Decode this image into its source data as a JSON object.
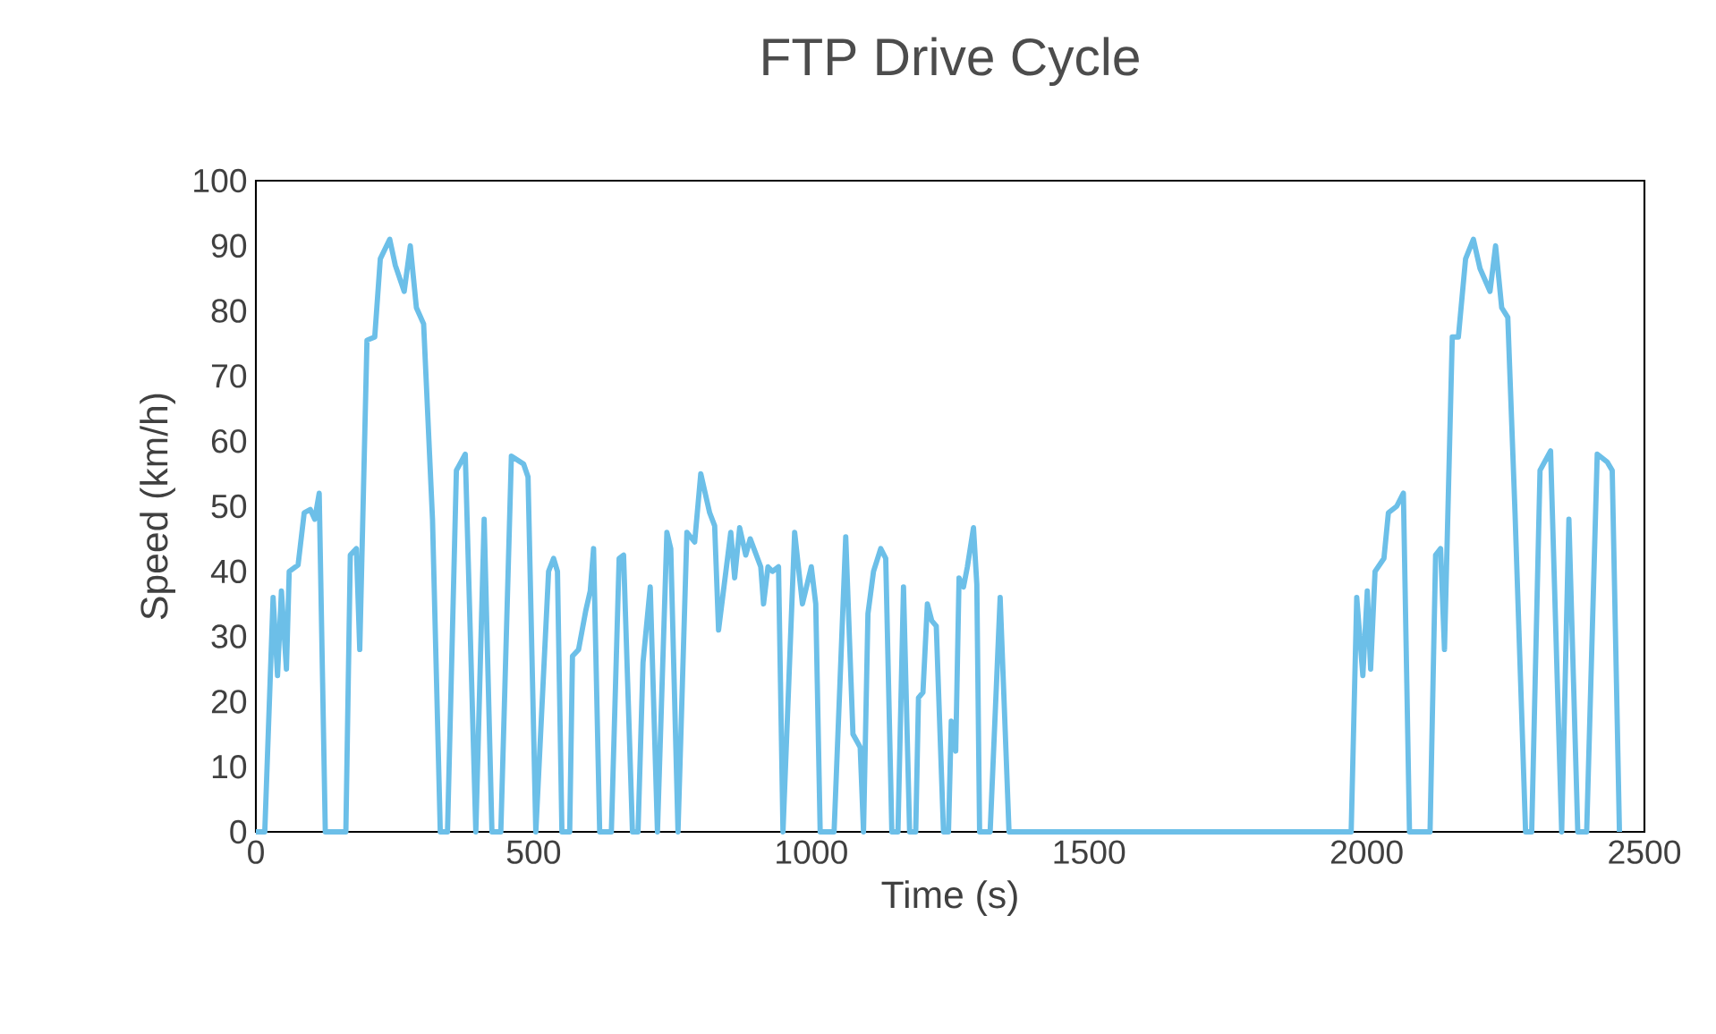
{
  "chart_data": {
    "type": "line",
    "title": "FTP Drive Cycle",
    "xlabel": "Time (s)",
    "ylabel": "Speed (km/h)",
    "x": [
      0,
      16,
      31,
      39,
      46,
      55,
      60,
      76,
      87,
      98,
      106,
      114,
      125,
      162,
      170,
      181,
      187,
      200,
      214,
      224,
      241,
      251,
      267,
      278,
      289,
      302,
      318,
      332,
      345,
      361,
      377,
      396,
      411,
      425,
      441,
      460,
      482,
      490,
      504,
      527,
      536,
      543,
      551,
      565,
      570,
      581,
      594,
      602,
      608,
      619,
      629,
      640,
      654,
      662,
      678,
      688,
      697,
      710,
      723,
      740,
      747,
      760,
      776,
      790,
      801,
      817,
      826,
      833,
      855,
      862,
      871,
      882,
      890,
      909,
      914,
      922,
      930,
      941,
      949,
      970,
      984,
      1000,
      1008,
      1016,
      1041,
      1062,
      1075,
      1088,
      1094,
      1102,
      1112,
      1125,
      1134,
      1145,
      1156,
      1166,
      1177,
      1188,
      1193,
      1201,
      1209,
      1217,
      1225,
      1238,
      1247,
      1252,
      1260,
      1266,
      1274,
      1281,
      1292,
      1298,
      1303,
      1322,
      1340,
      1356,
      1966,
      1972,
      1982,
      1993,
      2001,
      2007,
      2015,
      2031,
      2039,
      2054,
      2066,
      2077,
      2114,
      2124,
      2133,
      2140,
      2154,
      2165,
      2178,
      2192,
      2204,
      2222,
      2232,
      2243,
      2254,
      2267,
      2286,
      2297,
      2312,
      2331,
      2351,
      2364,
      2380,
      2396,
      2415,
      2433,
      2442,
      2455
    ],
    "series": [
      {
        "color": "#6cbfe8",
        "values": [
          0,
          0,
          36,
          24,
          37,
          25,
          40,
          41,
          49,
          49.5,
          48,
          52,
          0,
          0,
          42.5,
          43.5,
          28,
          75.5,
          76,
          88,
          91,
          87,
          83,
          90,
          80.5,
          78,
          48,
          0,
          0,
          55.5,
          58,
          0,
          48,
          0,
          0,
          57.7,
          56.5,
          54.5,
          0,
          40,
          42,
          40,
          0,
          0,
          27,
          28,
          34,
          37,
          43.5,
          0,
          0,
          0,
          42,
          42.5,
          0,
          0,
          26,
          37.6,
          0,
          46,
          43.5,
          0,
          46,
          44.5,
          55,
          49,
          47,
          31,
          46,
          39,
          46.7,
          42.5,
          45,
          40.7,
          35,
          40.7,
          40,
          40.7,
          0,
          46,
          35,
          40.7,
          35,
          0,
          0,
          45.3,
          15,
          13,
          0,
          33.5,
          40,
          43.5,
          42,
          0,
          0,
          37.6,
          0,
          0,
          20.6,
          21.4,
          35,
          32.4,
          31.6,
          0,
          0,
          17,
          12.4,
          39,
          37.6,
          40.7,
          46.7,
          38,
          0,
          0,
          36,
          0,
          0,
          0,
          36,
          24,
          37,
          25,
          40,
          42,
          49,
          50,
          52,
          0,
          0,
          42.5,
          43.5,
          28,
          76,
          76,
          88,
          91,
          86.5,
          83,
          90,
          80.5,
          79,
          49,
          0,
          0,
          55.5,
          58.5,
          0,
          48,
          0,
          0,
          58,
          56.8,
          55.5,
          0
        ]
      }
    ],
    "xlim": [
      0,
      2500
    ],
    "ylim": [
      0,
      100
    ],
    "xticks": [
      0,
      500,
      1000,
      1500,
      2000,
      2500
    ],
    "yticks": [
      0,
      10,
      20,
      30,
      40,
      50,
      60,
      70,
      80,
      90,
      100
    ]
  }
}
